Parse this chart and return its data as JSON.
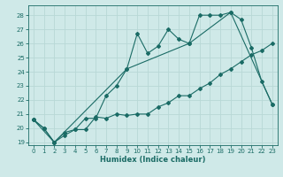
{
  "xlabel": "Humidex (Indice chaleur)",
  "bg_color": "#cfe9e8",
  "grid_color": "#b8d8d6",
  "line_color": "#1a6b65",
  "xlim": [
    -0.5,
    23.5
  ],
  "ylim": [
    18.8,
    28.7
  ],
  "yticks": [
    19,
    20,
    21,
    22,
    23,
    24,
    25,
    26,
    27,
    28
  ],
  "xticks": [
    0,
    1,
    2,
    3,
    4,
    5,
    6,
    7,
    8,
    9,
    10,
    11,
    12,
    13,
    14,
    15,
    16,
    17,
    18,
    19,
    20,
    21,
    22,
    23
  ],
  "series1_x": [
    0,
    1,
    2,
    3,
    4,
    5,
    6,
    7,
    8,
    9,
    10,
    11,
    12,
    13,
    14,
    15,
    16,
    17,
    18,
    19,
    20,
    21,
    22,
    23
  ],
  "series1_y": [
    20.6,
    20.0,
    19.0,
    19.7,
    19.9,
    19.9,
    20.8,
    20.7,
    21.0,
    20.9,
    21.0,
    21.0,
    21.5,
    21.8,
    22.3,
    22.3,
    22.8,
    23.2,
    23.8,
    24.2,
    24.7,
    25.2,
    25.5,
    26.0
  ],
  "series2_x": [
    0,
    1,
    2,
    3,
    4,
    5,
    6,
    7,
    8,
    9,
    10,
    11,
    12,
    13,
    14,
    15,
    16,
    17,
    18,
    19,
    20,
    21,
    22,
    23
  ],
  "series2_y": [
    20.6,
    20.0,
    19.0,
    19.5,
    19.9,
    20.7,
    20.7,
    22.3,
    23.0,
    24.2,
    26.7,
    25.3,
    25.8,
    27.0,
    26.3,
    26.0,
    28.0,
    28.0,
    28.0,
    28.2,
    27.7,
    25.7,
    23.3,
    21.7
  ],
  "series3_x": [
    0,
    2,
    9,
    15,
    19,
    23
  ],
  "series3_y": [
    20.6,
    19.0,
    24.2,
    26.0,
    28.2,
    21.7
  ]
}
